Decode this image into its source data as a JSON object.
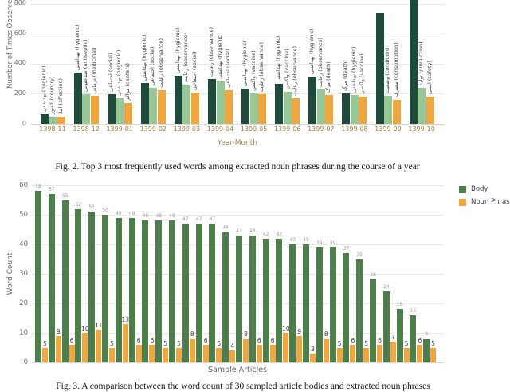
{
  "colors": {
    "fig2_dark_green": "#1e4a3c",
    "fig2_light_green": "#97c795",
    "fig2_orange": "#f0a63e",
    "fig3_green": "#4e7e4c",
    "fig3_orange": "#efa83f",
    "gridline": "#e9e9e7",
    "month_label": "#a07a3e",
    "axis_gray": "#6b6b6b",
    "slate": "#5b6672"
  },
  "captions": {
    "fig2": "Fig. 2. Top 3 most frequently used words among extracted noun phrases during the course of a year",
    "fig3": "Fig. 3. A comparison between the word count of 30 sampled article bodies and extracted noun phrases"
  },
  "chart_data": [
    {
      "id": "fig2",
      "type": "bar",
      "ylabel": "Number of Times Observed",
      "xlabel": "Year-Month",
      "yticks": [
        0,
        200,
        400,
        600,
        800
      ],
      "ylim": [
        0,
        830
      ],
      "note": "chart clipped at top of screenshot; 1399-10 dark bar and labels of 1399-09/1399-10 dark bars cut off",
      "categories": [
        "1398-11",
        "1398-12",
        "1399-01",
        "1399-02",
        "1399-03",
        "1399-04",
        "1399-05",
        "1399-06",
        "1399-07",
        "1399-08",
        "1399-09",
        "1399-10"
      ],
      "groups": [
        {
          "month": "1398-11",
          "bars": [
            {
              "value": 65,
              "label": "بهداشتی (hygienic)"
            },
            {
              "value": 50,
              "label": "کشور (country)"
            },
            {
              "value": 47,
              "label": "ابتلا (affection)"
            }
          ]
        },
        {
          "month": "1398-12",
          "bars": [
            {
              "value": 340,
              "label": "بهداشتی (hygienic)"
            },
            {
              "value": 195,
              "label": "ضدعفونی (antiseptic)"
            },
            {
              "value": 188,
              "label": "درمانی (medicinal)"
            }
          ]
        },
        {
          "month": "1399-01",
          "bars": [
            {
              "value": 197,
              "label": "اجتماعی (social)"
            },
            {
              "value": 172,
              "label": "بهداشتی (hygienic)"
            },
            {
              "value": 140,
              "label": "مراکز (centers)"
            }
          ]
        },
        {
          "month": "1399-02",
          "bars": [
            {
              "value": 272,
              "label": "بهداشتی (hygienic)"
            },
            {
              "value": 242,
              "label": "اجتماعی (social)"
            },
            {
              "value": 226,
              "label": "رعایت (observance)"
            }
          ]
        },
        {
          "month": "1399-03",
          "bars": [
            {
              "value": 320,
              "label": "بهداشتی (hygienic)"
            },
            {
              "value": 258,
              "label": "رعایت (observance)"
            },
            {
              "value": 207,
              "label": "اجتماعی (social)"
            }
          ]
        },
        {
          "month": "1399-04",
          "bars": [
            {
              "value": 300,
              "label": "رعایت (observance)"
            },
            {
              "value": 280,
              "label": "بهداشتی (hygienic)"
            },
            {
              "value": 225,
              "label": "اجتماعی (social)"
            }
          ]
        },
        {
          "month": "1399-05",
          "bars": [
            {
              "value": 235,
              "label": "بهداشتی (hygienic)"
            },
            {
              "value": 200,
              "label": "واکسن (vaccine)"
            },
            {
              "value": 198,
              "label": "رعایت (observance)"
            }
          ]
        },
        {
          "month": "1399-06",
          "bars": [
            {
              "value": 265,
              "label": "بهداشتی (hygienic)"
            },
            {
              "value": 212,
              "label": "واکسن (vaccine)"
            },
            {
              "value": 170,
              "label": "رعایت (observance)"
            }
          ]
        },
        {
          "month": "1399-07",
          "bars": [
            {
              "value": 315,
              "label": "بهداشتی (hygienic)"
            },
            {
              "value": 230,
              "label": "رعایت (observance)"
            },
            {
              "value": 190,
              "label": "مرگ (death)"
            }
          ]
        },
        {
          "month": "1399-08",
          "bars": [
            {
              "value": 200,
              "label": "مرگ (death)"
            },
            {
              "value": 192,
              "label": "بهداشتی (hygienic)"
            },
            {
              "value": 180,
              "label": "واکسن (vaccine)"
            }
          ]
        },
        {
          "month": "1399-09",
          "bars": [
            {
              "value": 740,
              "label": ""
            },
            {
              "value": 185,
              "label": "وضعیت (condition)"
            },
            {
              "value": 160,
              "label": "مصرف (consumption)"
            }
          ]
        },
        {
          "month": "1399-10",
          "bars": [
            {
              "value": 880,
              "label": "",
              "clipped": true
            },
            {
              "value": 237,
              "label": "تولید (production)"
            },
            {
              "value": 180,
              "label": "ایمنی (safety)"
            }
          ]
        }
      ]
    },
    {
      "id": "fig3",
      "type": "bar",
      "ylabel": "Word Count",
      "xlabel": "Sample Articles",
      "yticks": [
        0,
        10,
        20,
        30,
        40,
        50,
        60
      ],
      "ylim": [
        0,
        60
      ],
      "legend": [
        "Body",
        "Noun Phrase"
      ],
      "legend_position": "top-right outside",
      "series": [
        {
          "name": "Body",
          "values": [
            58,
            57,
            55,
            52,
            51,
            50,
            49,
            49,
            48,
            48,
            48,
            47,
            47,
            47,
            44,
            43,
            43,
            42,
            42,
            40,
            40,
            39,
            39,
            37,
            35,
            28,
            24,
            18,
            16,
            8
          ]
        },
        {
          "name": "Noun Phrase",
          "values": [
            5,
            9,
            6,
            10,
            11,
            5,
            13,
            6,
            6,
            5,
            5,
            8,
            6,
            5,
            4,
            8,
            6,
            6,
            10,
            9,
            3,
            8,
            5,
            6,
            5,
            6,
            7,
            5,
            6,
            5
          ]
        }
      ]
    }
  ]
}
